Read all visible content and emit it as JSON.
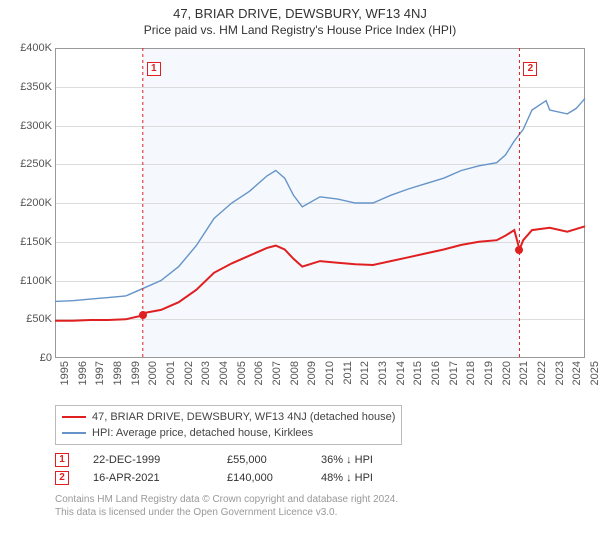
{
  "title": "47, BRIAR DRIVE, DEWSBURY, WF13 4NJ",
  "subtitle": "Price paid vs. HM Land Registry's House Price Index (HPI)",
  "chart": {
    "type": "line",
    "background_color": "#ffffff",
    "grid_color": "#dcdcdc",
    "border_color": "#999999",
    "shaded_band_color": "#f5f9fd",
    "x_years": [
      1995,
      1996,
      1997,
      1998,
      1999,
      2000,
      2001,
      2002,
      2003,
      2004,
      2005,
      2006,
      2007,
      2008,
      2009,
      2010,
      2011,
      2012,
      2013,
      2014,
      2015,
      2016,
      2017,
      2018,
      2019,
      2020,
      2021,
      2022,
      2023,
      2024,
      2025
    ],
    "ylim": [
      0,
      400000
    ],
    "ytick_step": 50000,
    "y_tick_labels": [
      "£0",
      "£50K",
      "£100K",
      "£150K",
      "£200K",
      "£250K",
      "£300K",
      "£350K",
      "£400K"
    ],
    "label_fontsize": 11,
    "series": [
      {
        "name": "price_paid",
        "label": "47, BRIAR DRIVE, DEWSBURY, WF13 4NJ (detached house)",
        "color": "#e02020",
        "line_width": 2,
        "data": [
          [
            1995,
            48000
          ],
          [
            1996,
            48000
          ],
          [
            1997,
            49000
          ],
          [
            1998,
            49000
          ],
          [
            1999,
            50000
          ],
          [
            1999.97,
            55000
          ],
          [
            2000,
            58000
          ],
          [
            2001,
            62000
          ],
          [
            2002,
            72000
          ],
          [
            2003,
            88000
          ],
          [
            2004,
            110000
          ],
          [
            2005,
            122000
          ],
          [
            2006,
            132000
          ],
          [
            2007,
            142000
          ],
          [
            2007.5,
            145000
          ],
          [
            2008,
            140000
          ],
          [
            2008.5,
            128000
          ],
          [
            2009,
            118000
          ],
          [
            2010,
            125000
          ],
          [
            2011,
            123000
          ],
          [
            2012,
            121000
          ],
          [
            2013,
            120000
          ],
          [
            2014,
            125000
          ],
          [
            2015,
            130000
          ],
          [
            2016,
            135000
          ],
          [
            2017,
            140000
          ],
          [
            2018,
            146000
          ],
          [
            2019,
            150000
          ],
          [
            2020,
            152000
          ],
          [
            2020.5,
            158000
          ],
          [
            2021,
            165000
          ],
          [
            2021.29,
            140000
          ],
          [
            2021.5,
            152000
          ],
          [
            2022,
            165000
          ],
          [
            2023,
            168000
          ],
          [
            2024,
            163000
          ],
          [
            2025,
            170000
          ]
        ]
      },
      {
        "name": "hpi",
        "label": "HPI: Average price, detached house, Kirklees",
        "color": "#6594c9",
        "line_width": 1.4,
        "data": [
          [
            1995,
            73000
          ],
          [
            1996,
            74000
          ],
          [
            1997,
            76000
          ],
          [
            1998,
            78000
          ],
          [
            1999,
            80000
          ],
          [
            2000,
            90000
          ],
          [
            2001,
            100000
          ],
          [
            2002,
            118000
          ],
          [
            2003,
            145000
          ],
          [
            2004,
            180000
          ],
          [
            2005,
            200000
          ],
          [
            2006,
            215000
          ],
          [
            2007,
            235000
          ],
          [
            2007.5,
            242000
          ],
          [
            2008,
            232000
          ],
          [
            2008.5,
            210000
          ],
          [
            2009,
            195000
          ],
          [
            2010,
            208000
          ],
          [
            2011,
            205000
          ],
          [
            2012,
            200000
          ],
          [
            2013,
            200000
          ],
          [
            2014,
            210000
          ],
          [
            2015,
            218000
          ],
          [
            2016,
            225000
          ],
          [
            2017,
            232000
          ],
          [
            2018,
            242000
          ],
          [
            2019,
            248000
          ],
          [
            2020,
            252000
          ],
          [
            2020.5,
            262000
          ],
          [
            2021,
            280000
          ],
          [
            2021.5,
            295000
          ],
          [
            2022,
            320000
          ],
          [
            2022.8,
            332000
          ],
          [
            2023,
            320000
          ],
          [
            2024,
            315000
          ],
          [
            2024.5,
            322000
          ],
          [
            2025,
            335000
          ]
        ]
      }
    ],
    "shaded_band": {
      "x_start": 1999.97,
      "x_end": 2021.29
    },
    "markers": [
      {
        "id": "1",
        "x": 1999.97,
        "y": 55000
      },
      {
        "id": "2",
        "x": 2021.29,
        "y": 140000
      }
    ]
  },
  "legend": {
    "rows": [
      {
        "color": "#e02020",
        "width": 2,
        "label": "47, BRIAR DRIVE, DEWSBURY, WF13 4NJ (detached house)"
      },
      {
        "color": "#6594c9",
        "width": 1.4,
        "label": "HPI: Average price, detached house, Kirklees"
      }
    ]
  },
  "transactions": [
    {
      "marker": "1",
      "date": "22-DEC-1999",
      "price": "£55,000",
      "diff": "36% ↓ HPI"
    },
    {
      "marker": "2",
      "date": "16-APR-2021",
      "price": "£140,000",
      "diff": "48% ↓ HPI"
    }
  ],
  "attribution": {
    "line1": "Contains HM Land Registry data © Crown copyright and database right 2024.",
    "line2": "This data is licensed under the Open Government Licence v3.0."
  }
}
